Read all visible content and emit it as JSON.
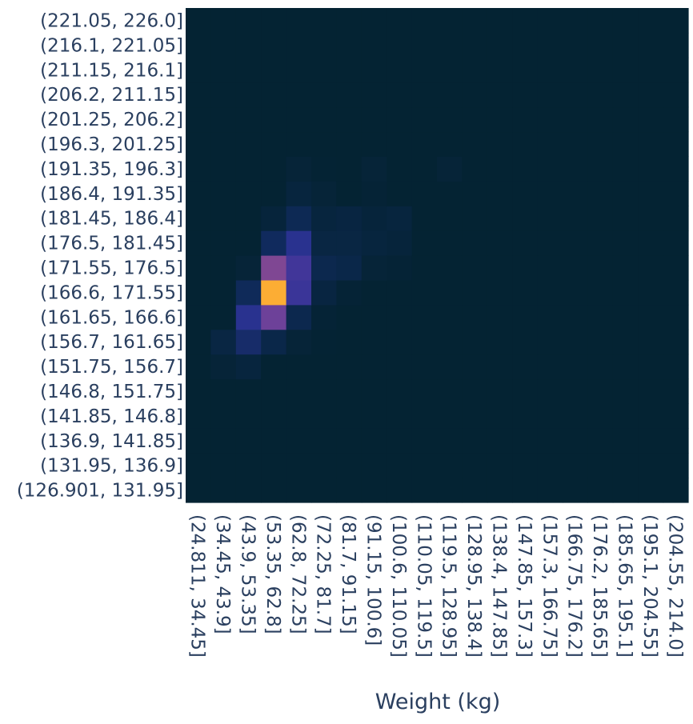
{
  "chart_data": {
    "type": "heatmap",
    "title": "",
    "xlabel": "Weight (kg)",
    "ylabel": "",
    "x_categories": [
      "(24.811, 34.45]",
      "(34.45, 43.9]",
      "(43.9, 53.35]",
      "(53.35, 62.8]",
      "(62.8, 72.25]",
      "(72.25, 81.7]",
      "(81.7, 91.15]",
      "(91.15, 100.6]",
      "(100.6, 110.05]",
      "(110.05, 119.5]",
      "(119.5, 128.95]",
      "(128.95, 138.4]",
      "(138.4, 147.85]",
      "(147.85, 157.3]",
      "(157.3, 166.75]",
      "(166.75, 176.2]",
      "(176.2, 185.65]",
      "(185.65, 195.1]",
      "(195.1, 204.55]",
      "(204.55, 214.0]"
    ],
    "y_categories": [
      "(126.901, 131.95]",
      "(131.95, 136.9]",
      "(136.9, 141.85]",
      "(141.85, 146.8]",
      "(146.8, 151.75]",
      "(151.75, 156.7]",
      "(156.7, 161.65]",
      "(161.65, 166.6]",
      "(166.6, 171.55]",
      "(171.55, 176.5]",
      "(176.5, 181.45]",
      "(181.45, 186.4]",
      "(186.4, 191.35]",
      "(191.35, 196.3]",
      "(196.3, 201.25]",
      "(201.25, 206.2]",
      "(206.2, 211.15]",
      "(211.15, 216.1]",
      "(216.1, 221.05]",
      "(221.05, 226.0]"
    ],
    "z": [
      [
        0,
        0,
        0,
        0,
        0,
        0,
        0,
        0,
        0,
        0,
        0,
        0,
        0,
        0,
        0,
        0,
        0,
        0,
        0,
        0
      ],
      [
        0,
        0,
        0,
        0,
        0,
        0,
        0,
        0,
        0,
        0,
        0,
        0,
        0,
        0,
        0,
        0,
        0,
        0,
        0,
        0
      ],
      [
        0,
        0,
        0,
        0,
        0,
        0,
        0,
        0,
        0,
        0,
        0,
        0,
        0,
        0,
        0,
        0,
        0,
        0,
        0,
        0
      ],
      [
        0,
        0,
        0,
        0,
        0,
        0,
        0,
        0,
        0,
        0,
        0,
        0,
        0,
        0,
        0,
        0,
        0,
        0,
        0,
        0
      ],
      [
        0,
        0,
        0,
        0,
        0,
        0,
        0,
        0,
        0,
        0,
        0,
        0,
        0,
        0,
        0,
        0,
        0,
        0,
        0,
        0
      ],
      [
        0,
        0.02,
        0.04,
        0,
        0,
        0,
        0,
        0,
        0,
        0,
        0,
        0,
        0,
        0,
        0,
        0,
        0,
        0,
        0,
        0
      ],
      [
        0,
        0.06,
        0.18,
        0.08,
        0.02,
        0.005,
        0,
        0,
        0,
        0,
        0,
        0,
        0,
        0,
        0,
        0,
        0,
        0,
        0,
        0
      ],
      [
        0,
        0,
        0.27,
        0.48,
        0.1,
        0.01,
        0,
        0,
        0,
        0,
        0,
        0,
        0,
        0,
        0,
        0,
        0,
        0,
        0,
        0
      ],
      [
        0,
        0,
        0.14,
        1.0,
        0.33,
        0.05,
        0.01,
        0,
        0,
        0,
        0,
        0,
        0,
        0,
        0,
        0,
        0,
        0,
        0,
        0
      ],
      [
        0,
        0,
        0.02,
        0.53,
        0.35,
        0.1,
        0.08,
        0.02,
        0.01,
        0,
        0,
        0,
        0,
        0,
        0,
        0,
        0,
        0,
        0,
        0
      ],
      [
        0,
        0,
        0,
        0.15,
        0.27,
        0.06,
        0.06,
        0.04,
        0.03,
        0,
        0,
        0,
        0,
        0,
        0,
        0,
        0,
        0,
        0,
        0
      ],
      [
        0,
        0,
        0,
        0.03,
        0.12,
        0.04,
        0.05,
        0.03,
        0.04,
        0,
        0,
        0,
        0,
        0,
        0,
        0,
        0,
        0,
        0,
        0
      ],
      [
        0,
        0,
        0,
        0,
        0.04,
        0.02,
        0,
        0.01,
        0,
        0,
        0,
        0,
        0,
        0,
        0,
        0,
        0,
        0,
        0,
        0
      ],
      [
        0,
        0,
        0,
        0,
        0.02,
        0.005,
        0,
        0.02,
        0,
        0,
        0.02,
        0,
        0,
        0,
        0,
        0,
        0,
        0,
        0,
        0
      ],
      [
        0,
        0,
        0,
        0,
        0,
        0,
        0,
        0,
        0,
        0,
        0,
        0,
        0,
        0,
        0,
        0,
        0,
        0,
        0,
        0
      ],
      [
        0,
        0,
        0,
        0,
        0,
        0,
        0,
        0,
        0,
        0,
        0,
        0,
        0,
        0,
        0,
        0,
        0,
        0,
        0,
        0
      ],
      [
        0,
        0,
        0,
        0,
        0,
        0,
        0,
        0,
        0,
        0,
        0,
        0,
        0,
        0,
        0,
        0,
        0,
        0,
        0,
        0
      ],
      [
        0,
        0,
        0,
        0,
        0,
        0,
        0,
        0,
        0,
        0,
        0,
        0,
        0,
        0,
        0,
        0,
        0,
        0,
        0,
        0
      ],
      [
        0,
        0,
        0,
        0,
        0,
        0,
        0,
        0,
        0,
        0,
        0,
        0,
        0,
        0,
        0,
        0,
        0,
        0,
        0,
        0
      ],
      [
        0,
        0,
        0,
        0,
        0,
        0,
        0,
        0,
        0,
        0,
        0,
        0,
        0,
        0,
        0,
        0,
        0,
        0,
        0,
        0
      ]
    ],
    "colorscale": [
      "#042333",
      "#0f2a5a",
      "#2c3395",
      "#5a3a9e",
      "#8e4d8f",
      "#c05a78",
      "#e8744f",
      "#fcad34"
    ],
    "legend": "none",
    "grid": false
  }
}
